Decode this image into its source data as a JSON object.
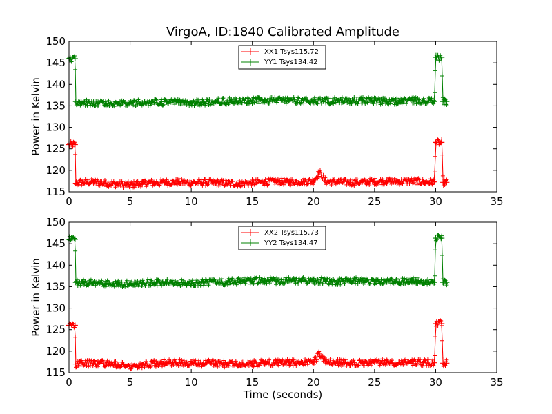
{
  "figure": {
    "title": "VirgoA, ID:1840 Calibrated Amplitude",
    "ylabel": "Power in Kelvin",
    "xlabel": "Time (seconds)"
  },
  "chart_data": [
    {
      "type": "line",
      "title": "VirgoA, ID:1840 Calibrated Amplitude",
      "xlabel": "",
      "ylabel": "Power in Kelvin",
      "xlim": [
        0,
        35
      ],
      "ylim": [
        115,
        150
      ],
      "xticks": [
        "0",
        "5",
        "10",
        "15",
        "20",
        "25",
        "30",
        "35"
      ],
      "yticks": [
        "115",
        "120",
        "125",
        "130",
        "135",
        "140",
        "145",
        "150"
      ],
      "grid": false,
      "legend": "top-center",
      "series": [
        {
          "name": "XX1 Tsys115.72",
          "color": "#ff0000",
          "marker": "plus",
          "x": [
            0.0,
            0.5,
            0.55,
            1,
            2,
            3,
            4,
            5,
            6,
            7,
            8,
            9,
            10,
            11,
            12,
            13,
            14,
            15,
            16,
            17,
            18,
            19,
            20,
            20.5,
            21,
            22,
            23,
            24,
            25,
            26,
            27,
            28,
            29,
            29.9,
            30.0,
            30.5,
            30.6,
            30.9
          ],
          "y": [
            126,
            126,
            117,
            117.2,
            117.3,
            117,
            116.8,
            116.6,
            117,
            117.1,
            117.2,
            117.3,
            117.1,
            117.2,
            117.1,
            117.0,
            116.9,
            117.1,
            117.3,
            117.4,
            117.3,
            117.4,
            117.5,
            119.5,
            117.4,
            117.3,
            117.2,
            117.3,
            117.4,
            117.5,
            117.4,
            117.5,
            117.3,
            117.3,
            126.5,
            126.5,
            117.2,
            117.2
          ]
        },
        {
          "name": "YY1 Tsys134.42",
          "color": "#008000",
          "marker": "plus",
          "x": [
            0.0,
            0.5,
            0.55,
            1,
            2,
            3,
            4,
            5,
            6,
            7,
            8,
            9,
            10,
            11,
            12,
            13,
            14,
            15,
            16,
            17,
            18,
            19,
            20,
            21,
            22,
            23,
            24,
            25,
            26,
            27,
            28,
            29,
            29.9,
            30.0,
            30.5,
            30.6,
            30.9
          ],
          "y": [
            146,
            146,
            136,
            135.8,
            135.7,
            135.6,
            135.5,
            135.6,
            135.7,
            135.8,
            135.9,
            135.8,
            135.7,
            135.9,
            136,
            136.1,
            136.2,
            136.2,
            136.3,
            136.3,
            136.3,
            136.2,
            136.1,
            136.1,
            136.2,
            136.2,
            136.3,
            136.2,
            136.0,
            136.1,
            136.2,
            136.2,
            136,
            146.3,
            146.3,
            136,
            136
          ]
        }
      ]
    },
    {
      "type": "line",
      "title": "",
      "xlabel": "Time (seconds)",
      "ylabel": "Power in Kelvin",
      "xlim": [
        0,
        35
      ],
      "ylim": [
        115,
        150
      ],
      "xticks": [
        "0",
        "5",
        "10",
        "15",
        "20",
        "25",
        "30",
        "35"
      ],
      "yticks": [
        "115",
        "120",
        "125",
        "130",
        "135",
        "140",
        "145",
        "150"
      ],
      "grid": false,
      "legend": "top-center",
      "series": [
        {
          "name": "XX2 Tsys115.73",
          "color": "#ff0000",
          "marker": "plus",
          "x": [
            0.0,
            0.5,
            0.55,
            1,
            2,
            3,
            4,
            5,
            6,
            7,
            8,
            9,
            10,
            11,
            12,
            13,
            14,
            15,
            16,
            17,
            18,
            19,
            20,
            20.5,
            21,
            22,
            23,
            24,
            25,
            26,
            27,
            28,
            29,
            29.9,
            30.0,
            30.5,
            30.6,
            30.9
          ],
          "y": [
            126,
            126,
            117,
            117.1,
            117.2,
            117,
            116.8,
            116.6,
            116.9,
            117.1,
            117.2,
            117.3,
            117.1,
            117.2,
            117.1,
            117.0,
            116.9,
            117.1,
            117.2,
            117.3,
            117.3,
            117.4,
            117.4,
            119.5,
            117.4,
            117.3,
            117.2,
            117.3,
            117.4,
            117.5,
            117.4,
            117.5,
            117.3,
            117.3,
            126.4,
            126.4,
            117.2,
            117.2
          ]
        },
        {
          "name": "YY2 Tsys134.47",
          "color": "#008000",
          "marker": "plus",
          "x": [
            0.0,
            0.5,
            0.55,
            1,
            2,
            3,
            4,
            5,
            6,
            7,
            8,
            9,
            10,
            11,
            12,
            13,
            14,
            15,
            16,
            17,
            18,
            19,
            20,
            21,
            22,
            23,
            24,
            25,
            26,
            27,
            28,
            29,
            29.9,
            30.0,
            30.5,
            30.6,
            30.9
          ],
          "y": [
            146,
            146,
            136,
            135.8,
            135.8,
            135.7,
            135.6,
            135.7,
            135.8,
            135.9,
            136,
            135.9,
            135.8,
            136,
            136.1,
            136.1,
            136.2,
            136.3,
            136.4,
            136.3,
            136.4,
            136.4,
            136.3,
            136.3,
            136.2,
            136.3,
            136.4,
            136.2,
            136.1,
            136.2,
            136.3,
            136.2,
            136,
            146.3,
            146.3,
            136,
            136
          ]
        }
      ]
    }
  ]
}
